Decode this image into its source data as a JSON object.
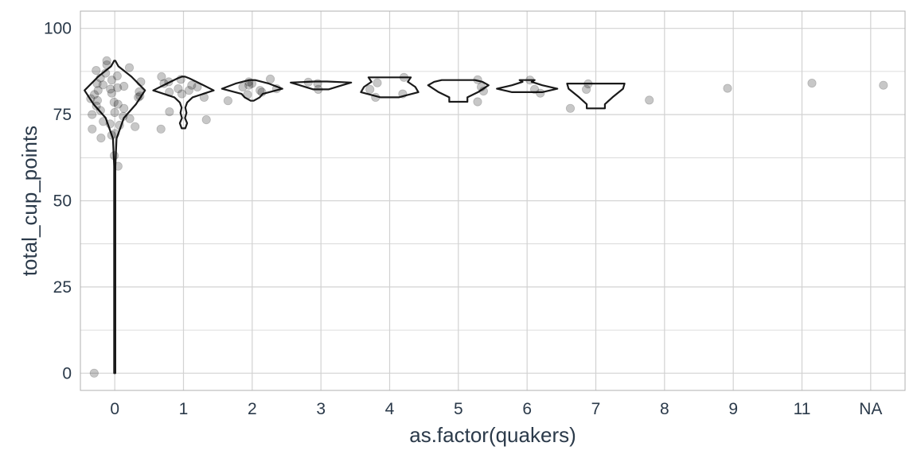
{
  "chart_data": {
    "type": "violin+jitter",
    "title": "",
    "xlabel": "as.factor(quakers)",
    "ylabel": "total_cup_points",
    "ylim": [
      -5,
      105
    ],
    "yticks": [
      0,
      25,
      50,
      75,
      100
    ],
    "categories": [
      "0",
      "1",
      "2",
      "3",
      "4",
      "5",
      "6",
      "7",
      "8",
      "9",
      "11",
      "NA"
    ],
    "grid": true,
    "legend": "none",
    "colors": {
      "points": "#000000",
      "points_opacity": 0.22,
      "violin_stroke": "#1a1a1a",
      "grid": "#d2d2d2",
      "panel_border": "#b0b0b0",
      "text": "#2b3a4a"
    },
    "violins": [
      {
        "category": "0",
        "profile": [
          [
            0,
            0.02
          ],
          [
            60,
            0.02
          ],
          [
            68,
            0.06
          ],
          [
            74,
            0.3
          ],
          [
            78,
            0.7
          ],
          [
            82,
            1.0
          ],
          [
            86,
            0.55
          ],
          [
            89,
            0.12
          ],
          [
            90.6,
            0.02
          ]
        ]
      },
      {
        "category": "1",
        "profile": [
          [
            71,
            0.06
          ],
          [
            72.5,
            0.12
          ],
          [
            74,
            0.05
          ],
          [
            75.5,
            0.1
          ],
          [
            77,
            0.06
          ],
          [
            78.5,
            0.12
          ],
          [
            80,
            0.3
          ],
          [
            82,
            1.0
          ],
          [
            84,
            0.55
          ],
          [
            85.5,
            0.2
          ],
          [
            86,
            0.05
          ]
        ]
      },
      {
        "category": "2",
        "profile": [
          [
            79,
            0.05
          ],
          [
            80,
            0.25
          ],
          [
            81,
            0.35
          ],
          [
            82.5,
            1.0
          ],
          [
            84,
            0.55
          ],
          [
            85,
            0.1
          ]
        ]
      },
      {
        "category": "3",
        "profile": [
          [
            82.3,
            0.25
          ],
          [
            83.5,
            0.7
          ],
          [
            84.3,
            1.0
          ],
          [
            84.6,
            0.2
          ]
        ]
      },
      {
        "category": "4",
        "profile": [
          [
            80,
            0.3
          ],
          [
            81.5,
            0.95
          ],
          [
            83,
            0.85
          ],
          [
            84.5,
            0.6
          ],
          [
            85.8,
            0.7
          ]
        ]
      },
      {
        "category": "5",
        "profile": [
          [
            78.7,
            0.3
          ],
          [
            80,
            0.3
          ],
          [
            81.5,
            0.65
          ],
          [
            83.5,
            1.0
          ],
          [
            84.5,
            0.8
          ],
          [
            85,
            0.55
          ]
        ]
      },
      {
        "category": "6",
        "profile": [
          [
            81.5,
            0.5
          ],
          [
            82.5,
            1.0
          ],
          [
            83.5,
            0.5
          ],
          [
            84.5,
            0.15
          ],
          [
            85,
            0.25
          ]
        ]
      },
      {
        "category": "7",
        "profile": [
          [
            76.8,
            0.3
          ],
          [
            78,
            0.3
          ],
          [
            80,
            0.55
          ],
          [
            82.5,
            0.9
          ],
          [
            84,
            0.95
          ]
        ]
      }
    ],
    "points": [
      {
        "x": "0",
        "y": 63.1
      },
      {
        "x": "0",
        "y": 60
      },
      {
        "x": "0",
        "y": 0
      },
      {
        "x": "0",
        "y": 68.2
      },
      {
        "x": "0",
        "y": 69
      },
      {
        "x": "0",
        "y": 69.5
      },
      {
        "x": "0",
        "y": 70.8
      },
      {
        "x": "0",
        "y": 71.5
      },
      {
        "x": "0",
        "y": 71.9
      },
      {
        "x": "0",
        "y": 72.3
      },
      {
        "x": "0",
        "y": 73
      },
      {
        "x": "0",
        "y": 73.8
      },
      {
        "x": "0",
        "y": 74.5
      },
      {
        "x": "0",
        "y": 75
      },
      {
        "x": "0",
        "y": 75.6
      },
      {
        "x": "0",
        "y": 76.2
      },
      {
        "x": "0",
        "y": 76.8
      },
      {
        "x": "0",
        "y": 77.5
      },
      {
        "x": "0",
        "y": 78
      },
      {
        "x": "0",
        "y": 78.6
      },
      {
        "x": "0",
        "y": 79.1
      },
      {
        "x": "0",
        "y": 79.6
      },
      {
        "x": "0",
        "y": 80
      },
      {
        "x": "0",
        "y": 80.4
      },
      {
        "x": "0",
        "y": 80.8
      },
      {
        "x": "0",
        "y": 81.2
      },
      {
        "x": "0",
        "y": 81.6
      },
      {
        "x": "0",
        "y": 82
      },
      {
        "x": "0",
        "y": 82.4
      },
      {
        "x": "0",
        "y": 82.8
      },
      {
        "x": "0",
        "y": 83.2
      },
      {
        "x": "0",
        "y": 83.6
      },
      {
        "x": "0",
        "y": 84
      },
      {
        "x": "0",
        "y": 84.5
      },
      {
        "x": "0",
        "y": 85
      },
      {
        "x": "0",
        "y": 85.6
      },
      {
        "x": "0",
        "y": 86.2
      },
      {
        "x": "0",
        "y": 87
      },
      {
        "x": "0",
        "y": 87.8
      },
      {
        "x": "0",
        "y": 88.6
      },
      {
        "x": "0",
        "y": 89.4
      },
      {
        "x": "0",
        "y": 90.6
      },
      {
        "x": "1",
        "y": 70.8
      },
      {
        "x": "1",
        "y": 73.5
      },
      {
        "x": "1",
        "y": 75.8
      },
      {
        "x": "1",
        "y": 80
      },
      {
        "x": "1",
        "y": 81
      },
      {
        "x": "1",
        "y": 81.5
      },
      {
        "x": "1",
        "y": 82
      },
      {
        "x": "1",
        "y": 82.5
      },
      {
        "x": "1",
        "y": 83
      },
      {
        "x": "1",
        "y": 83.5
      },
      {
        "x": "1",
        "y": 84
      },
      {
        "x": "1",
        "y": 84.5
      },
      {
        "x": "1",
        "y": 85.2
      },
      {
        "x": "1",
        "y": 86
      },
      {
        "x": "2",
        "y": 79
      },
      {
        "x": "2",
        "y": 80.8
      },
      {
        "x": "2",
        "y": 81.5
      },
      {
        "x": "2",
        "y": 82
      },
      {
        "x": "2",
        "y": 82.5
      },
      {
        "x": "2",
        "y": 83
      },
      {
        "x": "2",
        "y": 83.5
      },
      {
        "x": "2",
        "y": 84
      },
      {
        "x": "2",
        "y": 84.5
      },
      {
        "x": "2",
        "y": 85.3
      },
      {
        "x": "3",
        "y": 82.3
      },
      {
        "x": "3",
        "y": 84
      },
      {
        "x": "3",
        "y": 84.4
      },
      {
        "x": "4",
        "y": 80
      },
      {
        "x": "4",
        "y": 81
      },
      {
        "x": "4",
        "y": 82.3
      },
      {
        "x": "4",
        "y": 84.2
      },
      {
        "x": "4",
        "y": 85.8
      },
      {
        "x": "5",
        "y": 78.7
      },
      {
        "x": "5",
        "y": 81.8
      },
      {
        "x": "5",
        "y": 83
      },
      {
        "x": "5",
        "y": 85.1
      },
      {
        "x": "6",
        "y": 81.2
      },
      {
        "x": "6",
        "y": 82.3
      },
      {
        "x": "6",
        "y": 85
      },
      {
        "x": "7",
        "y": 76.8
      },
      {
        "x": "7",
        "y": 82.3
      },
      {
        "x": "7",
        "y": 83.9
      },
      {
        "x": "8",
        "y": 79.2
      },
      {
        "x": "9",
        "y": 82.6
      },
      {
        "x": "11",
        "y": 84.1
      },
      {
        "x": "NA",
        "y": 83.5
      }
    ]
  }
}
